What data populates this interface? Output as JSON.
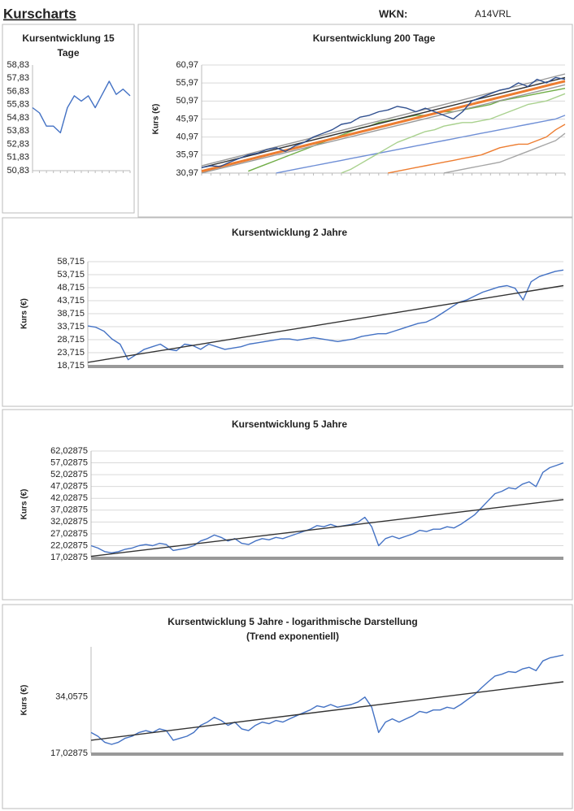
{
  "header": {
    "title": "Kurscharts",
    "wkn_label": "WKN:",
    "wkn": "A14VRL"
  },
  "chart_data": [
    {
      "type": "line",
      "title": [
        "Kursentwicklung 15",
        "Tage"
      ],
      "grid": false,
      "log_scale": false,
      "ylim": [
        50.83,
        58.83
      ],
      "yticks": [
        {
          "value": 50.83,
          "label": "50,83"
        },
        {
          "value": 51.83,
          "label": "51,83"
        },
        {
          "value": 52.83,
          "label": "52,83"
        },
        {
          "value": 53.83,
          "label": "53,83"
        },
        {
          "value": 54.83,
          "label": "54,83"
        },
        {
          "value": 55.83,
          "label": "55,83"
        },
        {
          "value": 56.83,
          "label": "56,83"
        },
        {
          "value": 57.83,
          "label": "57,83"
        },
        {
          "value": 58.83,
          "label": "58,83"
        }
      ],
      "series": [
        {
          "color": "#4472c4",
          "values": [
            55.6,
            55.2,
            54.2,
            54.2,
            53.7,
            55.6,
            56.5,
            56.1,
            56.5,
            55.6,
            56.6,
            57.6,
            56.6,
            57.0,
            56.5
          ]
        }
      ]
    },
    {
      "type": "line",
      "title": [
        "Kursentwicklung 200 Tage"
      ],
      "y_label": "Kurs (€)",
      "grid": true,
      "log_scale": false,
      "ylim": [
        30.97,
        60.97
      ],
      "yticks": [
        {
          "value": 30.97,
          "label": "30,97"
        },
        {
          "value": 35.97,
          "label": "35,97"
        },
        {
          "value": 40.97,
          "label": "40,97"
        },
        {
          "value": 45.97,
          "label": "45,97"
        },
        {
          "value": 50.97,
          "label": "50,97"
        },
        {
          "value": 55.97,
          "label": "55,97"
        },
        {
          "value": 60.97,
          "label": "60,97"
        }
      ],
      "series": [
        {
          "color": "#a5a5a5",
          "values": [
            null,
            null,
            null,
            null,
            null,
            null,
            null,
            null,
            null,
            null,
            null,
            null,
            null,
            null,
            null,
            null,
            null,
            null,
            null,
            null,
            null,
            null,
            null,
            null,
            null,
            null,
            31,
            31.5,
            32,
            32.5,
            33,
            33.5,
            34,
            35,
            36,
            37,
            38,
            39,
            40,
            42
          ]
        },
        {
          "color": "#ed7d31",
          "values": [
            null,
            null,
            null,
            null,
            null,
            null,
            null,
            null,
            null,
            null,
            null,
            null,
            null,
            null,
            null,
            null,
            null,
            null,
            null,
            null,
            31,
            31.5,
            32,
            32.5,
            33,
            33.5,
            34,
            34.5,
            35,
            35.5,
            36,
            37,
            38,
            38.5,
            39,
            39,
            40,
            41,
            43,
            44.5
          ]
        },
        {
          "color": "#6f8fd6",
          "values": [
            null,
            null,
            null,
            null,
            null,
            null,
            null,
            null,
            31,
            31.5,
            32,
            32.5,
            33,
            33.5,
            34,
            34.5,
            35,
            35.5,
            36,
            36.5,
            37,
            37.5,
            38,
            38.5,
            39,
            39.5,
            40,
            40.5,
            41,
            41.5,
            42,
            42.5,
            43,
            43.5,
            44,
            44.5,
            45,
            45.5,
            46,
            47
          ]
        },
        {
          "color": "#a9d18e",
          "values": [
            null,
            null,
            null,
            null,
            null,
            null,
            null,
            null,
            null,
            null,
            null,
            null,
            null,
            null,
            null,
            31,
            32,
            33.5,
            35,
            36.5,
            38,
            39.5,
            40.5,
            41.5,
            42.5,
            43,
            44,
            44.5,
            45,
            45,
            45.5,
            46,
            47,
            48,
            49,
            50,
            50.5,
            51,
            52,
            53
          ]
        },
        {
          "color": "#70ad47",
          "values": [
            null,
            null,
            null,
            null,
            null,
            31.5,
            32.5,
            33.5,
            34.5,
            35.5,
            36.5,
            37.5,
            38.5,
            39.5,
            40.5,
            41.5,
            42.5,
            43.5,
            44,
            45,
            45.5,
            46,
            46.5,
            47,
            47,
            47.5,
            48,
            48,
            48.5,
            49,
            49.5,
            50,
            51,
            51.5,
            52,
            52.5,
            53,
            53.5,
            54,
            54.5
          ]
        },
        {
          "color": "#999999",
          "x": [
            0,
            39
          ],
          "values": [
            33,
            58.5
          ]
        },
        {
          "color": "#999999",
          "x": [
            0,
            39
          ],
          "values": [
            31,
            55.5
          ]
        },
        {
          "color": "#ed7d31",
          "line_width": 3,
          "x": [
            0,
            39
          ],
          "values": [
            31.5,
            56.5
          ]
        },
        {
          "color": "#333333",
          "x": [
            0,
            39
          ],
          "values": [
            32.5,
            57.5
          ]
        },
        {
          "color": "#2f4f8f",
          "values": [
            32.5,
            33,
            32.8,
            34,
            35,
            36,
            36.5,
            37.5,
            38,
            37,
            38.5,
            39.5,
            41,
            42,
            43,
            44.5,
            45,
            46.5,
            47,
            48,
            48.5,
            49.5,
            49,
            48,
            49,
            48,
            47,
            46,
            48,
            51,
            52,
            53,
            54,
            54.5,
            56,
            55,
            57,
            56,
            57.5,
            57
          ]
        }
      ]
    },
    {
      "type": "line",
      "title": [
        "Kursentwicklung 2 Jahre"
      ],
      "y_label": "Kurs (€)",
      "grid": true,
      "log_scale": false,
      "ylim": [
        18.715,
        58.715
      ],
      "yticks": [
        {
          "value": 18.715,
          "label": "18,715"
        },
        {
          "value": 23.715,
          "label": "23,715"
        },
        {
          "value": 28.715,
          "label": "28,715"
        },
        {
          "value": 33.715,
          "label": "33,715"
        },
        {
          "value": 38.715,
          "label": "38,715"
        },
        {
          "value": 43.715,
          "label": "43,715"
        },
        {
          "value": 48.715,
          "label": "48,715"
        },
        {
          "value": 53.715,
          "label": "53,715"
        },
        {
          "value": 58.715,
          "label": "58,715"
        }
      ],
      "series": [
        {
          "color": "#4472c4",
          "values": [
            34,
            33.5,
            32,
            29,
            27,
            21,
            23,
            25,
            26,
            27,
            25,
            24.5,
            27,
            26.5,
            25,
            27,
            26,
            25,
            25.5,
            26,
            27,
            27.5,
            28,
            28.5,
            29,
            29,
            28.5,
            29,
            29.5,
            29,
            28.5,
            28,
            28.5,
            29,
            30,
            30.5,
            31,
            31,
            32,
            33,
            34,
            35,
            35.5,
            37,
            39,
            41,
            43,
            44,
            45.5,
            47,
            48,
            49,
            49.5,
            48.5,
            44,
            51,
            53,
            54,
            55,
            55.5
          ]
        },
        {
          "color": "#333333",
          "x": [
            0,
            59
          ],
          "values": [
            20,
            49.5
          ]
        }
      ]
    },
    {
      "type": "line",
      "title": [
        "Kursentwicklung 5 Jahre"
      ],
      "y_label": "Kurs (€)",
      "grid": true,
      "log_scale": false,
      "ylim": [
        17.02875,
        62.02875
      ],
      "yticks": [
        {
          "value": 17.02875,
          "label": "17,02875"
        },
        {
          "value": 22.02875,
          "label": "22,02875"
        },
        {
          "value": 27.02875,
          "label": "27,02875"
        },
        {
          "value": 32.02875,
          "label": "32,02875"
        },
        {
          "value": 37.02875,
          "label": "37,02875"
        },
        {
          "value": 42.02875,
          "label": "42,02875"
        },
        {
          "value": 47.02875,
          "label": "47,02875"
        },
        {
          "value": 52.02875,
          "label": "52,02875"
        },
        {
          "value": 57.02875,
          "label": "57,02875"
        },
        {
          "value": 62.02875,
          "label": "62,02875"
        }
      ],
      "series": [
        {
          "color": "#4472c4",
          "values": [
            22,
            21,
            19.5,
            19,
            19.5,
            20.5,
            21,
            22,
            22.5,
            22,
            23,
            22.5,
            20,
            20.5,
            21,
            22,
            24,
            25,
            26.5,
            25.5,
            24,
            25,
            23,
            22.5,
            24,
            25,
            24.5,
            25.5,
            25,
            26,
            27,
            28,
            29,
            30.5,
            30,
            31,
            30,
            30.5,
            31,
            32,
            34,
            30,
            22,
            25,
            26,
            25,
            26,
            27,
            28.5,
            28,
            29,
            29,
            30,
            29.5,
            31,
            33,
            35,
            38,
            41,
            44,
            45,
            46.5,
            46,
            48,
            49,
            47,
            53,
            55,
            56,
            57
          ]
        },
        {
          "color": "#333333",
          "x": [
            0,
            69
          ],
          "values": [
            17.5,
            41.5
          ]
        }
      ]
    },
    {
      "type": "line",
      "title": [
        "Kursentwicklung 5 Jahre - logarithmische Darstellung",
        "(Trend exponentiell)"
      ],
      "y_label": "Kurs (€)",
      "grid": false,
      "log_scale": true,
      "ylim": [
        17.02875,
        63
      ],
      "yticks": [
        {
          "value": 17.02875,
          "label": "17,02875"
        },
        {
          "value": 34.0575,
          "label": "34,0575"
        }
      ],
      "series": [
        {
          "color": "#4472c4",
          "values": [
            22,
            21,
            19.5,
            19,
            19.5,
            20.5,
            21,
            22,
            22.5,
            22,
            23,
            22.5,
            20,
            20.5,
            21,
            22,
            24,
            25,
            26.5,
            25.5,
            24,
            25,
            23,
            22.5,
            24,
            25,
            24.5,
            25.5,
            25,
            26,
            27,
            28,
            29,
            30.5,
            30,
            31,
            30,
            30.5,
            31,
            32,
            34,
            30,
            22,
            25,
            26,
            25,
            26,
            27,
            28.5,
            28,
            29,
            29,
            30,
            29.5,
            31,
            33,
            35,
            38,
            41,
            44,
            45,
            46.5,
            46,
            48,
            49,
            47,
            53,
            55,
            56,
            57
          ]
        },
        {
          "color": "#333333",
          "x": [
            0,
            69
          ],
          "values": [
            20,
            41
          ]
        }
      ]
    }
  ]
}
